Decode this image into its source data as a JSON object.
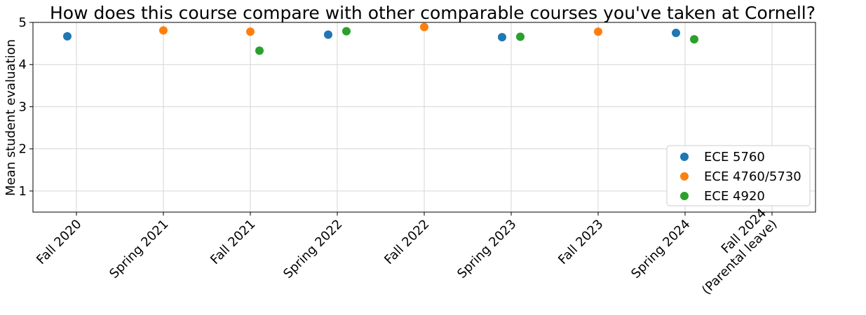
{
  "chart_data": {
    "type": "scatter",
    "title": "How does this course compare with other comparable courses you've taken at Cornell?",
    "xlabel": "",
    "ylabel": "Mean student evaluation",
    "ylim": [
      0.5,
      5
    ],
    "yticks": [
      1,
      2,
      3,
      4,
      5
    ],
    "grid": true,
    "legend_position": "lower-right",
    "categories": [
      [
        "Fall 2020"
      ],
      [
        "Spring 2021"
      ],
      [
        "Fall 2021"
      ],
      [
        "Spring 2022"
      ],
      [
        "Fall 2022"
      ],
      [
        "Spring 2023"
      ],
      [
        "Fall 2023"
      ],
      [
        "Spring 2024"
      ],
      [
        "Fall 2024",
        "(Parental leave)"
      ]
    ],
    "series": [
      {
        "name": "ECE 5760",
        "color": "#1f77b4",
        "points": [
          {
            "category": 0,
            "y": 4.67
          },
          {
            "category": 3,
            "y": 4.71
          },
          {
            "category": 5,
            "y": 4.65
          },
          {
            "category": 7,
            "y": 4.75
          }
        ]
      },
      {
        "name": "ECE 4760/5730",
        "color": "#ff7f0e",
        "points": [
          {
            "category": 1,
            "y": 4.81
          },
          {
            "category": 2,
            "y": 4.78
          },
          {
            "category": 4,
            "y": 4.89
          },
          {
            "category": 6,
            "y": 4.78
          }
        ]
      },
      {
        "name": "ECE 4920",
        "color": "#2ca02c",
        "points": [
          {
            "category": 2,
            "y": 4.33
          },
          {
            "category": 3,
            "y": 4.79
          },
          {
            "category": 5,
            "y": 4.66
          },
          {
            "category": 7,
            "y": 4.6
          }
        ]
      }
    ]
  }
}
